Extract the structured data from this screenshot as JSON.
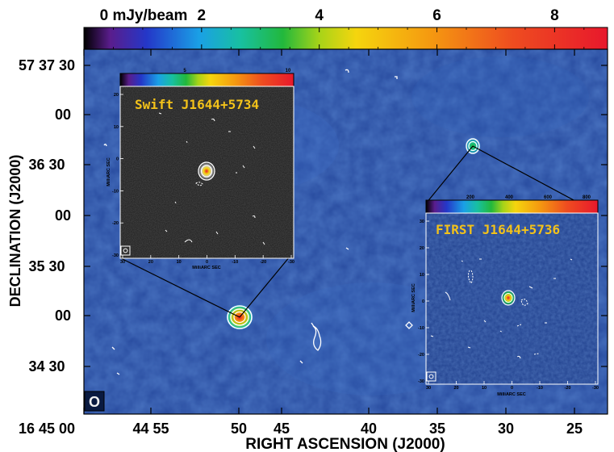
{
  "chart_data": {
    "type": "heatmap",
    "colorbar": {
      "labels": [
        "0 mJy/beam",
        "2",
        "4",
        "6",
        "8"
      ],
      "values": [
        0,
        2,
        4,
        6,
        8
      ],
      "range": [
        0,
        8.9
      ],
      "colors": [
        "#000000",
        "#5a1d8c",
        "#2437c8",
        "#1aa0e6",
        "#18c0a0",
        "#22b83c",
        "#a8d418",
        "#f5d50e",
        "#f59a10",
        "#ee4c20",
        "#e8182c"
      ]
    },
    "xlabel": "RIGHT ASCENSION (J2000)",
    "ylabel": "DECLINATION (J2000)",
    "xticks": [
      "16 45 00",
      "44 55",
      "50",
      "45",
      "40",
      "35",
      "30",
      "25"
    ],
    "yticks": [
      "57 37 30",
      "00",
      "36 30",
      "00",
      "35 30",
      "00",
      "34 30"
    ],
    "sources": [
      {
        "name": "Swift J1644+5734",
        "peak_mjy": 8.5
      },
      {
        "name": "FIRST J1644+5736",
        "peak_mjy": 3.0
      }
    ],
    "insets": [
      {
        "title": "Swift J1644+5734",
        "colorbar_ticks": [
          "5",
          "10"
        ],
        "xlabel": "MilliARC SEC",
        "ylabel": "MilliARC SEC",
        "xticks": [
          "30",
          "20",
          "10",
          "0",
          "-10",
          "-20",
          "-30"
        ],
        "yticks": [
          "20",
          "10",
          "0",
          "-10",
          "-20",
          "-30"
        ]
      },
      {
        "title": "FIRST J1644+5736",
        "colorbar_ticks": [
          "200",
          "400",
          "600",
          "800"
        ],
        "xlabel": "MilliARC SEC",
        "ylabel": "MilliARC SEC",
        "xticks": [
          "30",
          "20",
          "10",
          "0",
          "-10",
          "-20",
          "-30"
        ],
        "yticks": [
          "30",
          "20",
          "10",
          "0",
          "-10",
          "-20",
          "-30"
        ]
      }
    ],
    "beam_label": "O"
  }
}
